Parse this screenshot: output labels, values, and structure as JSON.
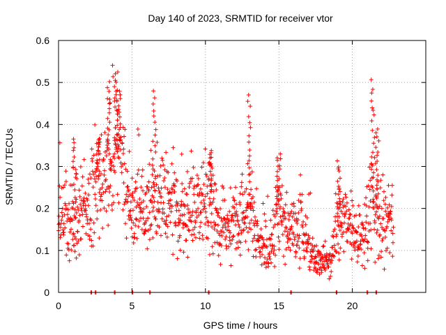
{
  "chart_data": {
    "type": "scatter",
    "title": "Day 140 of 2023, SRMTID for receiver vtor",
    "xlabel": "GPS time / hours",
    "ylabel": "SRMTID / TECUs",
    "xlim": [
      0,
      25
    ],
    "ylim": [
      0,
      0.6
    ],
    "x_ticks": [
      "0",
      "5",
      "10",
      "15",
      "20"
    ],
    "y_ticks": [
      "0",
      "0.1",
      "0.2",
      "0.3",
      "0.4",
      "0.5",
      "0.6"
    ],
    "grid": true,
    "marker": "plus",
    "color": "#ff0000",
    "series": [
      {
        "name": "SRMTID",
        "trend": [
          [
            0.0,
            0.2
          ],
          [
            0.5,
            0.17
          ],
          [
            1.0,
            0.17
          ],
          [
            1.5,
            0.2
          ],
          [
            2.0,
            0.19
          ],
          [
            2.5,
            0.27
          ],
          [
            3.0,
            0.27
          ],
          [
            3.5,
            0.3
          ],
          [
            4.0,
            0.33
          ],
          [
            4.3,
            0.34
          ],
          [
            4.6,
            0.22
          ],
          [
            5.0,
            0.19
          ],
          [
            5.5,
            0.22
          ],
          [
            6.0,
            0.18
          ],
          [
            6.5,
            0.23
          ],
          [
            7.0,
            0.25
          ],
          [
            7.5,
            0.2
          ],
          [
            8.0,
            0.2
          ],
          [
            8.5,
            0.18
          ],
          [
            9.0,
            0.2
          ],
          [
            9.5,
            0.21
          ],
          [
            10.0,
            0.2
          ],
          [
            10.5,
            0.22
          ],
          [
            11.0,
            0.14
          ],
          [
            11.5,
            0.15
          ],
          [
            12.0,
            0.18
          ],
          [
            12.5,
            0.2
          ],
          [
            13.0,
            0.2
          ],
          [
            13.5,
            0.13
          ],
          [
            14.0,
            0.09
          ],
          [
            14.5,
            0.1
          ],
          [
            15.0,
            0.2
          ],
          [
            15.5,
            0.17
          ],
          [
            16.0,
            0.14
          ],
          [
            16.5,
            0.16
          ],
          [
            17.0,
            0.12
          ],
          [
            17.5,
            0.07
          ],
          [
            18.0,
            0.07
          ],
          [
            18.5,
            0.07
          ],
          [
            19.0,
            0.16
          ],
          [
            19.5,
            0.17
          ],
          [
            20.0,
            0.14
          ],
          [
            20.5,
            0.12
          ],
          [
            21.0,
            0.15
          ],
          [
            21.5,
            0.24
          ],
          [
            22.0,
            0.15
          ],
          [
            22.5,
            0.17
          ],
          [
            22.8,
            0.16
          ]
        ],
        "spikes": [
          [
            3.4,
            0.5
          ],
          [
            3.9,
            0.505
          ],
          [
            4.1,
            0.48
          ],
          [
            6.5,
            0.48
          ],
          [
            13.0,
            0.47
          ],
          [
            1.1,
            0.37
          ],
          [
            2.7,
            0.37
          ],
          [
            15.0,
            0.33
          ],
          [
            10.3,
            0.34
          ],
          [
            21.4,
            0.505
          ],
          [
            21.7,
            0.39
          ],
          [
            19.1,
            0.31
          ]
        ],
        "baseline_x": [
          2.2,
          2.5,
          3.8,
          5.0,
          6.2,
          10.2,
          15.8,
          18.9,
          21.0,
          21.6
        ]
      }
    ]
  }
}
